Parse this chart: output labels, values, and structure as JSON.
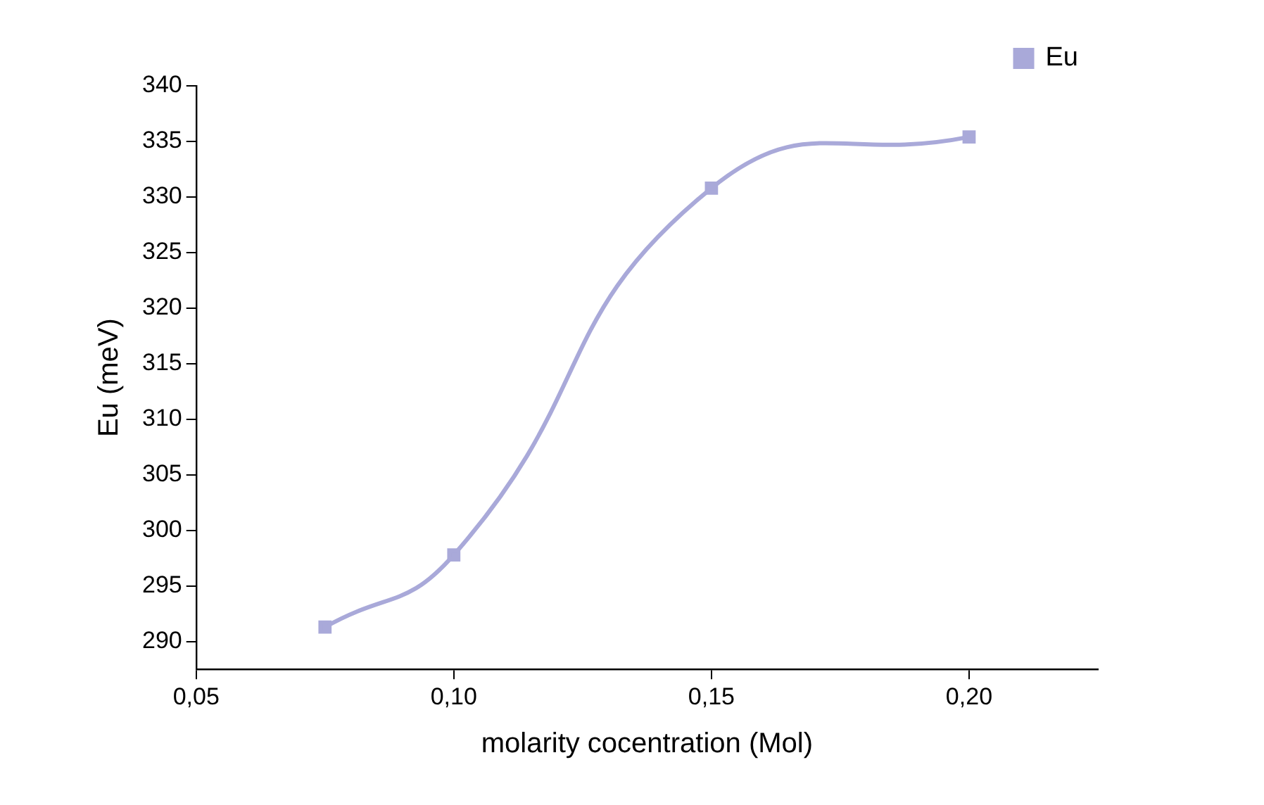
{
  "chart_data": {
    "type": "line",
    "xlabel": "molarity cocentration (Mol)",
    "ylabel": "Eu (meV)",
    "x": [
      0.075,
      0.1,
      0.15,
      0.2
    ],
    "series": [
      {
        "name": "Eu",
        "color": "#a9a9d9",
        "values": [
          291.3,
          297.8,
          330.8,
          335.4
        ]
      }
    ],
    "xlim": [
      0.05,
      0.225
    ],
    "xticks": [
      {
        "value": 0.05,
        "label": "0,05"
      },
      {
        "value": 0.1,
        "label": "0,10"
      },
      {
        "value": 0.15,
        "label": "0,15"
      },
      {
        "value": 0.2,
        "label": "0,20"
      }
    ],
    "ylim": [
      287.5,
      340
    ],
    "yticks": [
      290,
      295,
      300,
      305,
      310,
      315,
      320,
      325,
      330,
      335,
      340
    ],
    "marker": "square",
    "line_style": "solid",
    "grid": false,
    "legend": "top right"
  }
}
